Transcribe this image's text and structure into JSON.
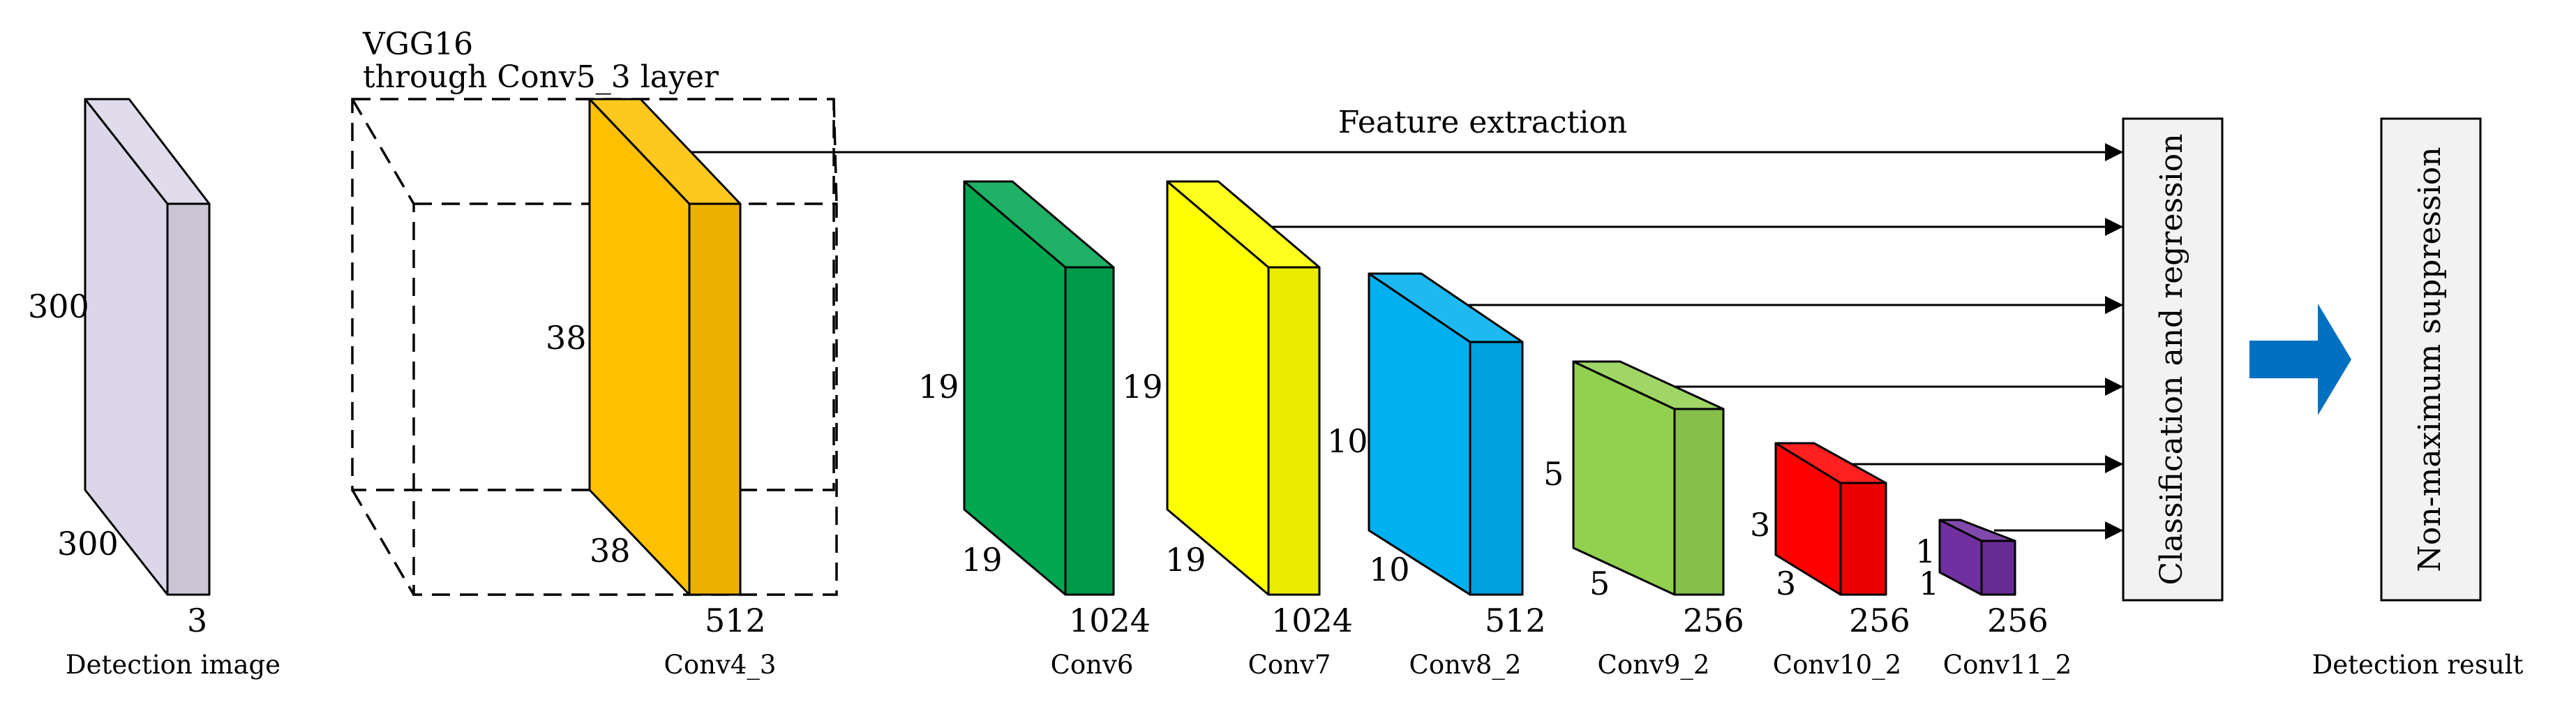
{
  "layers": [
    {
      "name": "detection-image",
      "color": "#dcd7e8",
      "height_label": "300",
      "width_label": "300",
      "depth_label": "3",
      "caption": "Detection image"
    },
    {
      "name": "conv4-3",
      "color": "#ffc000",
      "height_label": "38",
      "width_label": "38",
      "depth_label": "512",
      "caption": "Conv4_3"
    },
    {
      "name": "conv6",
      "color": "#00a650",
      "height_label": "19",
      "width_label": "19",
      "depth_label": "1024",
      "caption": "Conv6"
    },
    {
      "name": "conv7",
      "color": "#ffff00",
      "height_label": "19",
      "width_label": "19",
      "depth_label": "1024",
      "caption": "Conv7"
    },
    {
      "name": "conv8-2",
      "color": "#00b0f0",
      "height_label": "10",
      "width_label": "10",
      "depth_label": "512",
      "caption": "Conv8_2"
    },
    {
      "name": "conv9-2",
      "color": "#92d050",
      "height_label": "5",
      "width_label": "5",
      "depth_label": "256",
      "caption": "Conv9_2"
    },
    {
      "name": "conv10-2",
      "color": "#ff0000",
      "height_label": "3",
      "width_label": "3",
      "depth_label": "256",
      "caption": "Conv10_2"
    },
    {
      "name": "conv11-2",
      "color": "#7030a0",
      "height_label": "1",
      "width_label": "1",
      "depth_label": "256",
      "caption": "Conv11_2"
    }
  ],
  "vgg_label": {
    "line1": "VGG16",
    "line2": "through Conv5_3 layer"
  },
  "feature_extraction_label": "Feature extraction",
  "classification_box": {
    "label": "Classification and regression"
  },
  "nms_box": {
    "label": "Non-maximum suppression"
  },
  "detection_result_caption": "Detection result",
  "big_arrow_color": "#0070c0"
}
